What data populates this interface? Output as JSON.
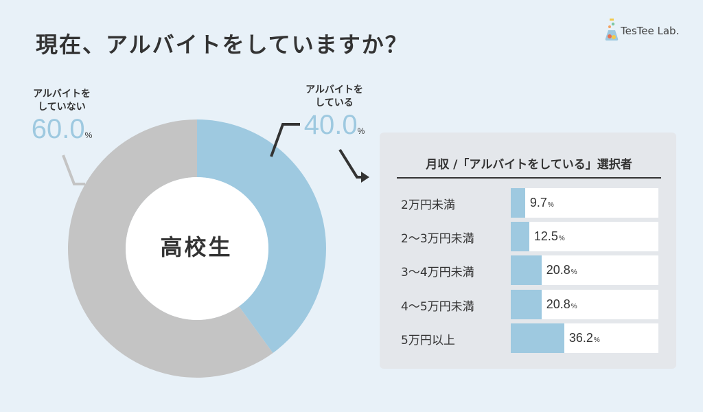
{
  "title": "現在、アルバイトをしていますか？",
  "logo": {
    "text": "TesTee Lab."
  },
  "chart_data": [
    {
      "type": "pie",
      "center_label": "高校生",
      "categories": [
        "アルバイトをしている",
        "アルバイトをしていない"
      ],
      "values": [
        40.0,
        60.0
      ],
      "callouts": [
        {
          "line1": "アルバイトを",
          "line2": "している",
          "value": "40.0",
          "unit": "%"
        },
        {
          "line1": "アルバイトを",
          "line2": "していない",
          "value": "60.0",
          "unit": "%"
        }
      ],
      "colors": [
        "#9ec9e0",
        "#c4c4c4"
      ]
    },
    {
      "type": "bar",
      "title": "月収 /「アルバイトをしている」選択者",
      "categories": [
        "2万円未満",
        "2〜3万円未満",
        "3〜4万円未満",
        "4〜5万円未満",
        "5万円以上"
      ],
      "values": [
        9.7,
        12.5,
        20.8,
        20.8,
        36.2
      ],
      "value_labels": [
        "9.7",
        "12.5",
        "20.8",
        "20.8",
        "36.2"
      ],
      "unit": "%",
      "xlim": [
        0,
        100
      ],
      "color": "#9ec9e0"
    }
  ]
}
